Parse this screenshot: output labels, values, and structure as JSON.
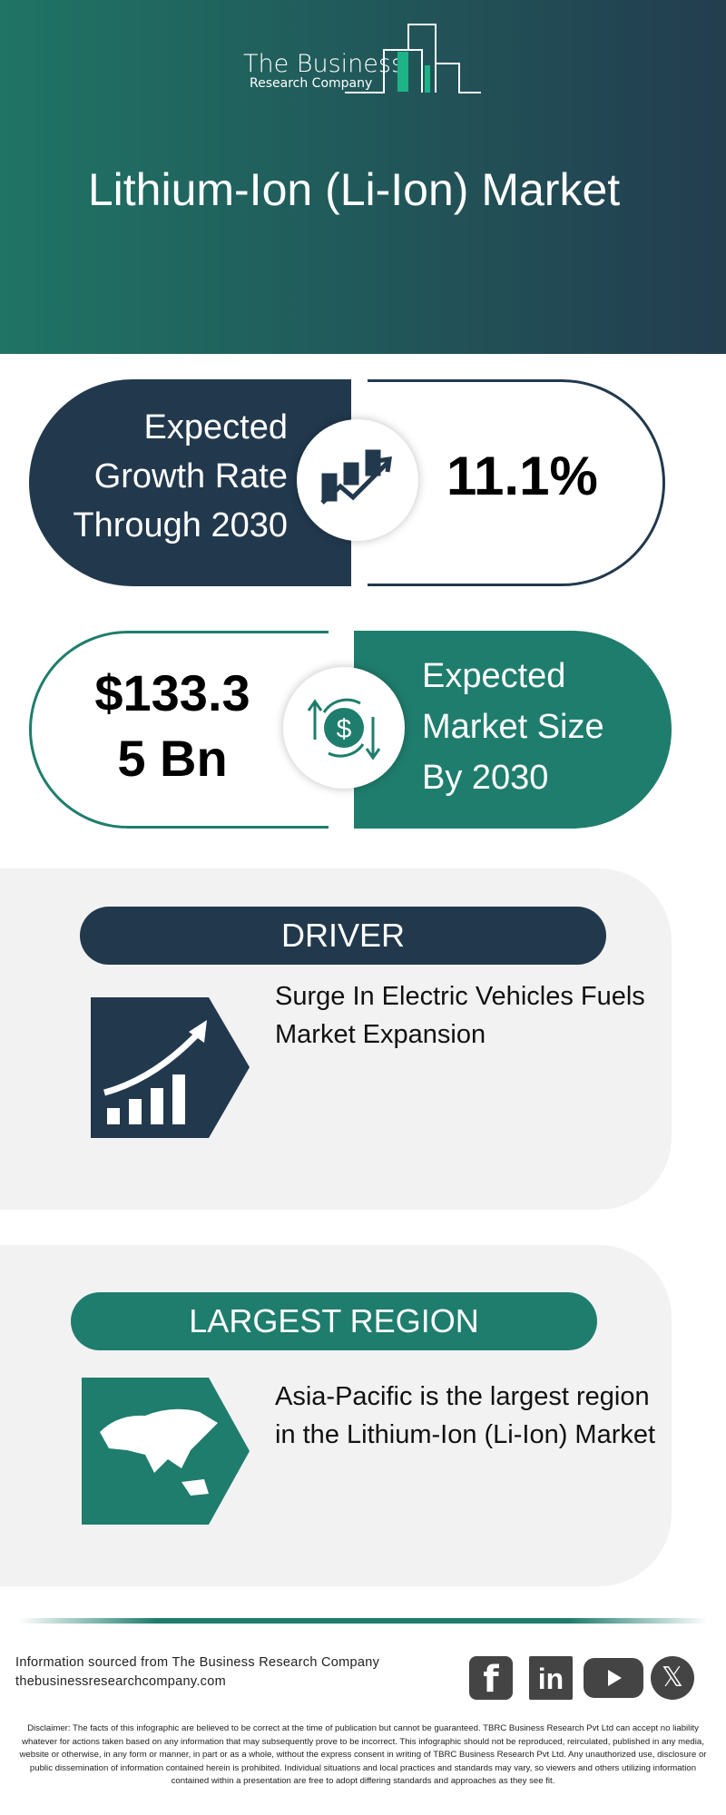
{
  "logo": {
    "line1": "The Business",
    "line2": "Research Company"
  },
  "title": "Lithium-Ion (Li-Ion) Market",
  "growth": {
    "label_lines": [
      "Expected",
      "Growth Rate",
      "Through 2030"
    ],
    "value": "11.1%",
    "icon": "growth-chart-icon"
  },
  "market_size": {
    "value_lines": [
      "$133.3",
      "5 Bn"
    ],
    "label_lines": [
      "Expected",
      "Market Size",
      "By 2030"
    ],
    "icon": "dollar-exchange-icon"
  },
  "driver": {
    "heading": "DRIVER",
    "text": "Surge In Electric Vehicles Fuels Market Expansion",
    "icon": "rising-bar-chart-icon"
  },
  "region": {
    "heading": "LARGEST REGION",
    "text": "Asia-Pacific is the largest region in the Lithium-Ion (Li-Ion) Market",
    "icon": "asia-map-icon"
  },
  "footer": {
    "source": "Information sourced from The Business Research Company",
    "website": "thebusinessresearchcompany.com",
    "social": [
      "facebook",
      "linkedin",
      "youtube",
      "x"
    ]
  },
  "disclaimer": "Disclaimer: The facts of this infographic are believed to be correct at the time of publication but cannot be guaranteed. TBRC Business Research Pvt Ltd can accept no liability whatever for actions taken based on any information that may subsequently prove to be incorrect. This infographic should not be reproduced, reirculated, published in any media, website or otherwise, in any form or manner, in part or as a whole, without the express consent in writing of TBRC Business Research Pvt Ltd. Any unauthorized use, disclosure or public dissemination of information contained herein is prohibited. Individual situations and local practices and standards may vary, so viewers and others utilizing information contained within a presentation are free to adopt differing standards and approaches as they see fit.",
  "colors": {
    "navy": "#22384d",
    "teal": "#1f7d6d",
    "panel": "#f2f2f2"
  }
}
